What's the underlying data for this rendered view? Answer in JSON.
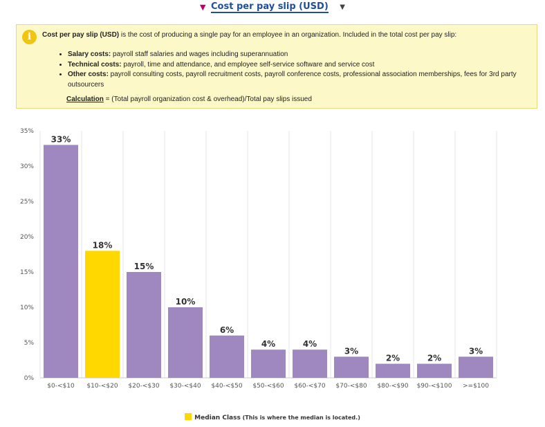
{
  "header": {
    "metric_label": "Cost per pay slip (USD)",
    "filter_icon": "filter-icon",
    "caret_icon": "caret-down-icon"
  },
  "info_box": {
    "icon": "info-icon",
    "title": "Cost per pay slip (USD)",
    "intro": " is the cost of producing a single pay for an employee in an organization. Included in the total cost per pay slip:",
    "items": [
      {
        "label": "Salary costs:",
        "text": " payroll staff salaries and wages including superannuation"
      },
      {
        "label": "Technical costs:",
        "text": " payroll, time and attendance, and employee self-service software and service cost"
      },
      {
        "label": "Other costs:",
        "text": " payroll consulting costs, payroll recruitment costs, payroll conference costs, professional association memberships, fees for 3rd party outsourcers"
      }
    ],
    "calculation_label": "Calculation",
    "calculation_text": " = (Total payroll organization cost & overhead)/Total pay slips issued"
  },
  "chart_data": {
    "type": "bar",
    "categories": [
      "$0-<$10",
      "$10-<$20",
      "$20-<$30",
      "$30-<$40",
      "$40-<$50",
      "$50-<$60",
      "$60-<$70",
      "$70-<$80",
      "$80-<$90",
      "$90-<$100",
      ">=$100"
    ],
    "values": [
      33,
      18,
      15,
      10,
      6,
      4,
      4,
      3,
      2,
      2,
      3
    ],
    "data_labels": [
      "33%",
      "18%",
      "15%",
      "10%",
      "6%",
      "4%",
      "4%",
      "3%",
      "2%",
      "2%",
      "3%"
    ],
    "yticks": [
      "0%",
      "5%",
      "10%",
      "15%",
      "20%",
      "25%",
      "30%",
      "35%"
    ],
    "ylim": [
      0,
      35
    ],
    "highlight_index": 1,
    "colors": {
      "bar": "#9f87bf",
      "highlight": "#ffd800",
      "grid": "#e6e6e6"
    },
    "grid": true
  },
  "legend": {
    "label": "Median Class",
    "note": " (This is where the median is located.)"
  }
}
